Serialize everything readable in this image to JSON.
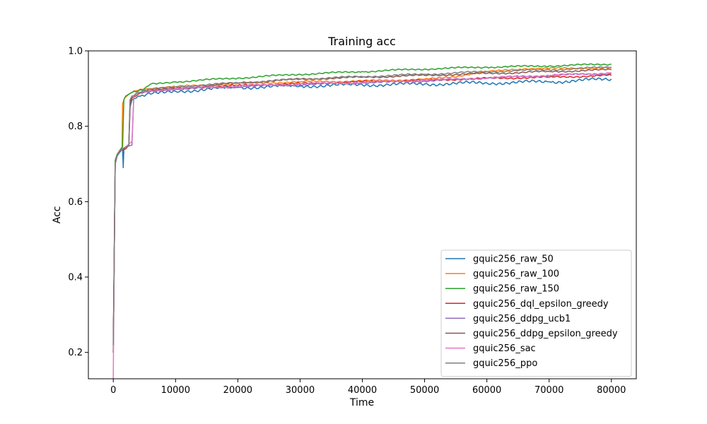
{
  "chart_data": {
    "type": "line",
    "title": "Training acc",
    "xlabel": "Time",
    "ylabel": "Acc",
    "xlim": [
      -4000,
      84000
    ],
    "ylim": [
      0.13,
      1.0
    ],
    "xticks": [
      0,
      10000,
      20000,
      30000,
      40000,
      50000,
      60000,
      70000,
      80000
    ],
    "yticks": [
      0.2,
      0.4,
      0.6,
      0.8,
      1.0
    ],
    "xtick_labels": [
      "0",
      "10000",
      "20000",
      "30000",
      "40000",
      "50000",
      "60000",
      "70000",
      "80000"
    ],
    "ytick_labels": [
      "0.2",
      "0.4",
      "0.6",
      "0.8",
      "1.0"
    ],
    "grid": false,
    "legend_position": "lower-right",
    "series": [
      {
        "name": "gquic256_raw_50",
        "color": "#1f77b4",
        "x": [
          0,
          300,
          600,
          1000,
          1500,
          1600,
          1700,
          2000,
          2500,
          2700,
          3000,
          4000,
          6000,
          10000,
          20000,
          30000,
          40000,
          50000,
          60000,
          70000,
          80000
        ],
        "y": [
          0.22,
          0.7,
          0.72,
          0.73,
          0.74,
          0.69,
          0.74,
          0.745,
          0.75,
          0.85,
          0.87,
          0.88,
          0.885,
          0.893,
          0.903,
          0.907,
          0.91,
          0.912,
          0.915,
          0.918,
          0.925
        ]
      },
      {
        "name": "gquic256_raw_100",
        "color": "#ff7f0e",
        "x": [
          0,
          300,
          600,
          1000,
          1400,
          1500,
          1800,
          2500,
          3000,
          4000,
          6000,
          10000,
          20000,
          30000,
          40000,
          50000,
          55000,
          60000,
          65000,
          70000,
          80000
        ],
        "y": [
          0.2,
          0.7,
          0.72,
          0.735,
          0.745,
          0.86,
          0.875,
          0.885,
          0.89,
          0.895,
          0.9,
          0.905,
          0.913,
          0.918,
          0.92,
          0.925,
          0.93,
          0.945,
          0.95,
          0.953,
          0.955
        ]
      },
      {
        "name": "gquic256_raw_150",
        "color": "#2ca02c",
        "x": [
          0,
          300,
          600,
          1000,
          1500,
          1700,
          2000,
          3000,
          5000,
          6000,
          10000,
          20000,
          30000,
          40000,
          50000,
          60000,
          70000,
          80000
        ],
        "y": [
          0.2,
          0.71,
          0.725,
          0.735,
          0.745,
          0.87,
          0.88,
          0.89,
          0.9,
          0.912,
          0.918,
          0.928,
          0.938,
          0.945,
          0.952,
          0.957,
          0.96,
          0.965
        ]
      },
      {
        "name": "gquic256_dql_epsilon_greedy",
        "color": "#d62728",
        "x": [
          0,
          300,
          600,
          1000,
          2000,
          2500,
          2700,
          3000,
          4000,
          6000,
          10000,
          20000,
          30000,
          40000,
          50000,
          60000,
          70000,
          80000
        ],
        "y": [
          0.2,
          0.7,
          0.72,
          0.735,
          0.74,
          0.75,
          0.86,
          0.875,
          0.885,
          0.893,
          0.9,
          0.908,
          0.913,
          0.918,
          0.922,
          0.927,
          0.93,
          0.935
        ]
      },
      {
        "name": "gquic256_ddpg_ucb1",
        "color": "#9467bd",
        "x": [
          0,
          300,
          600,
          1000,
          2000,
          3000,
          3300,
          3500,
          4000,
          6000,
          10000,
          20000,
          30000,
          40000,
          50000,
          60000,
          70000,
          80000
        ],
        "y": [
          0.2,
          0.7,
          0.72,
          0.735,
          0.745,
          0.75,
          0.88,
          0.885,
          0.89,
          0.893,
          0.898,
          0.905,
          0.91,
          0.915,
          0.92,
          0.928,
          0.935,
          0.94
        ]
      },
      {
        "name": "gquic256_ddpg_epsilon_greedy",
        "color": "#8c564b",
        "x": [
          0,
          300,
          600,
          1000,
          2000,
          2500,
          2700,
          3000,
          4000,
          6000,
          10000,
          20000,
          30000,
          40000,
          50000,
          60000,
          70000,
          80000
        ],
        "y": [
          0.2,
          0.7,
          0.72,
          0.735,
          0.745,
          0.75,
          0.87,
          0.88,
          0.89,
          0.895,
          0.9,
          0.915,
          0.925,
          0.93,
          0.935,
          0.94,
          0.945,
          0.95
        ]
      },
      {
        "name": "gquic256_sac",
        "color": "#e377c2",
        "x": [
          0,
          200,
          300,
          600,
          1000,
          2000,
          3000,
          3300,
          3500,
          4000,
          6000,
          10000,
          20000,
          30000,
          40000,
          50000,
          60000,
          70000,
          80000
        ],
        "y": [
          0.13,
          0.55,
          0.7,
          0.72,
          0.735,
          0.745,
          0.76,
          0.88,
          0.885,
          0.89,
          0.895,
          0.9,
          0.907,
          0.912,
          0.917,
          0.922,
          0.928,
          0.935,
          0.942
        ]
      },
      {
        "name": "gquic256_ppo",
        "color": "#7f7f7f",
        "x": [
          0,
          300,
          600,
          1000,
          2000,
          2500,
          2700,
          3000,
          4000,
          6000,
          10000,
          20000,
          30000,
          40000,
          50000,
          60000,
          70000,
          80000
        ],
        "y": [
          0.22,
          0.7,
          0.72,
          0.735,
          0.745,
          0.75,
          0.87,
          0.88,
          0.89,
          0.898,
          0.905,
          0.915,
          0.925,
          0.932,
          0.938,
          0.945,
          0.95,
          0.957
        ]
      }
    ]
  }
}
